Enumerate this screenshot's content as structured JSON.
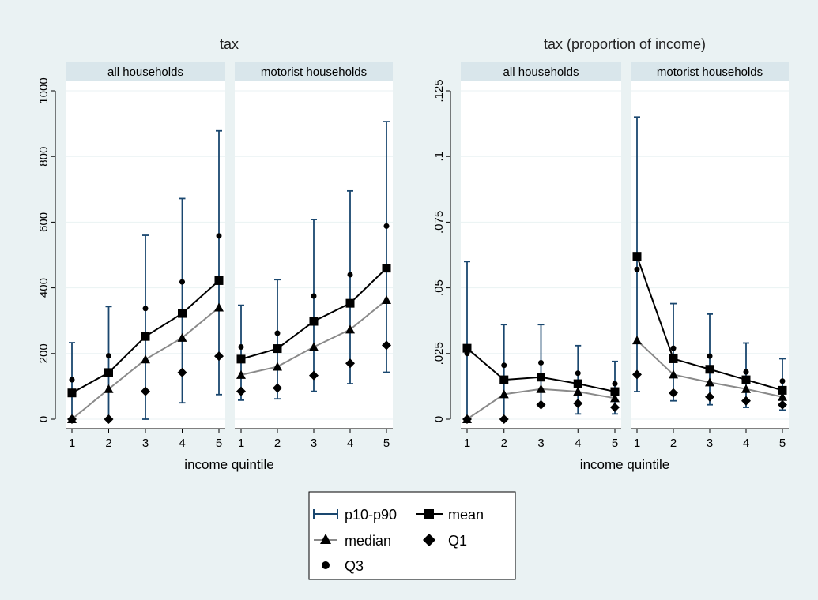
{
  "colors": {
    "background": "#eaf2f3",
    "plot_background": "#ffffff",
    "strip_background": "#d9e6eb",
    "whisker": "#1a476f",
    "mean_line": "#000000",
    "median_line": "#8a8a8a",
    "marker": "#000000",
    "gridline": "#eaf2f3"
  },
  "legend": {
    "placement": "bottom-center",
    "items": [
      {
        "label": "p10-p90",
        "icon": "whisker-icon"
      },
      {
        "label": "mean",
        "icon": "square-marker-line-icon"
      },
      {
        "label": "median",
        "icon": "triangle-marker-line-icon"
      },
      {
        "label": "Q1",
        "icon": "diamond-marker-icon"
      },
      {
        "label": "Q3",
        "icon": "circle-marker-icon"
      }
    ]
  },
  "chart_data": [
    {
      "type": "line",
      "title": "tax",
      "xlabel": "income quintile",
      "ylabel": "",
      "ylim": [
        0,
        1000
      ],
      "yticks": [
        "0",
        "200",
        "400",
        "600",
        "800",
        "1000"
      ],
      "yticks_values": [
        0,
        200,
        400,
        600,
        800,
        1000
      ],
      "grid": true,
      "panels": [
        {
          "label": "all households",
          "x": [
            1,
            2,
            3,
            4,
            5
          ],
          "xticks": [
            "1",
            "2",
            "3",
            "4",
            "5"
          ],
          "series": [
            {
              "name": "p10-p90",
              "kind": "whisker",
              "low": [
                0,
                0,
                0,
                50,
                75
              ],
              "high": [
                233,
                343,
                560,
                672,
                878
              ]
            },
            {
              "name": "mean",
              "kind": "line",
              "marker": "square",
              "values": [
                80,
                142,
                252,
                322,
                422
              ]
            },
            {
              "name": "median",
              "kind": "line",
              "marker": "triangle",
              "values": [
                0,
                92,
                182,
                248,
                340
              ]
            },
            {
              "name": "Q1",
              "kind": "marker",
              "marker": "diamond",
              "values": [
                0,
                0,
                85,
                142,
                192
              ]
            },
            {
              "name": "Q3",
              "kind": "marker",
              "marker": "circle",
              "values": [
                120,
                193,
                337,
                418,
                558
              ]
            }
          ]
        },
        {
          "label": "motorist households",
          "x": [
            1,
            2,
            3,
            4,
            5
          ],
          "xticks": [
            "1",
            "2",
            "3",
            "4",
            "5"
          ],
          "series": [
            {
              "name": "p10-p90",
              "kind": "whisker",
              "low": [
                58,
                62,
                85,
                108,
                143
              ],
              "high": [
                347,
                425,
                608,
                695,
                906
              ]
            },
            {
              "name": "mean",
              "kind": "line",
              "marker": "square",
              "values": [
                183,
                215,
                298,
                353,
                460
              ]
            },
            {
              "name": "median",
              "kind": "line",
              "marker": "triangle",
              "values": [
                135,
                160,
                220,
                273,
                363
              ]
            },
            {
              "name": "Q1",
              "kind": "marker",
              "marker": "diamond",
              "values": [
                85,
                95,
                133,
                170,
                225
              ]
            },
            {
              "name": "Q3",
              "kind": "marker",
              "marker": "circle",
              "values": [
                220,
                262,
                375,
                440,
                588
              ]
            }
          ]
        }
      ]
    },
    {
      "type": "line",
      "title": "tax (proportion of income)",
      "xlabel": "income quintile",
      "ylabel": "",
      "ylim": [
        0,
        0.125
      ],
      "yticks": [
        "0",
        ".025",
        ".05",
        ".075",
        ".1",
        ".125"
      ],
      "yticks_values": [
        0,
        0.025,
        0.05,
        0.075,
        0.1,
        0.125
      ],
      "grid": true,
      "panels": [
        {
          "label": "all households",
          "x": [
            1,
            2,
            3,
            4,
            5
          ],
          "xticks": [
            "1",
            "2",
            "3",
            "4",
            "5"
          ],
          "series": [
            {
              "name": "p10-p90",
              "kind": "whisker",
              "low": [
                0,
                0,
                0.005,
                0.002,
                0.002
              ],
              "high": [
                0.06,
                0.036,
                0.036,
                0.028,
                0.022
              ]
            },
            {
              "name": "mean",
              "kind": "line",
              "marker": "square",
              "values": [
                0.027,
                0.015,
                0.016,
                0.0135,
                0.0105
              ]
            },
            {
              "name": "median",
              "kind": "line",
              "marker": "triangle",
              "values": [
                0,
                0.0095,
                0.0115,
                0.0105,
                0.008
              ]
            },
            {
              "name": "Q1",
              "kind": "marker",
              "marker": "diamond",
              "values": [
                0,
                0,
                0.0055,
                0.006,
                0.0045
              ]
            },
            {
              "name": "Q3",
              "kind": "marker",
              "marker": "circle",
              "values": [
                0.025,
                0.0205,
                0.0215,
                0.0175,
                0.0135
              ]
            }
          ]
        },
        {
          "label": "motorist households",
          "x": [
            1,
            2,
            3,
            4,
            5
          ],
          "xticks": [
            "1",
            "2",
            "3",
            "4",
            "5"
          ],
          "series": [
            {
              "name": "p10-p90",
              "kind": "whisker",
              "low": [
                0.0105,
                0.007,
                0.0055,
                0.0045,
                0.0035
              ],
              "high": [
                0.115,
                0.044,
                0.04,
                0.029,
                0.023
              ]
            },
            {
              "name": "mean",
              "kind": "line",
              "marker": "square",
              "values": [
                0.062,
                0.023,
                0.019,
                0.015,
                0.011
              ]
            },
            {
              "name": "median",
              "kind": "line",
              "marker": "triangle",
              "values": [
                0.03,
                0.017,
                0.014,
                0.0115,
                0.0085
              ]
            },
            {
              "name": "Q1",
              "kind": "marker",
              "marker": "diamond",
              "values": [
                0.017,
                0.01,
                0.0085,
                0.007,
                0.0055
              ]
            },
            {
              "name": "Q3",
              "kind": "marker",
              "marker": "circle",
              "values": [
                0.057,
                0.027,
                0.024,
                0.018,
                0.0145
              ]
            }
          ]
        }
      ]
    }
  ]
}
